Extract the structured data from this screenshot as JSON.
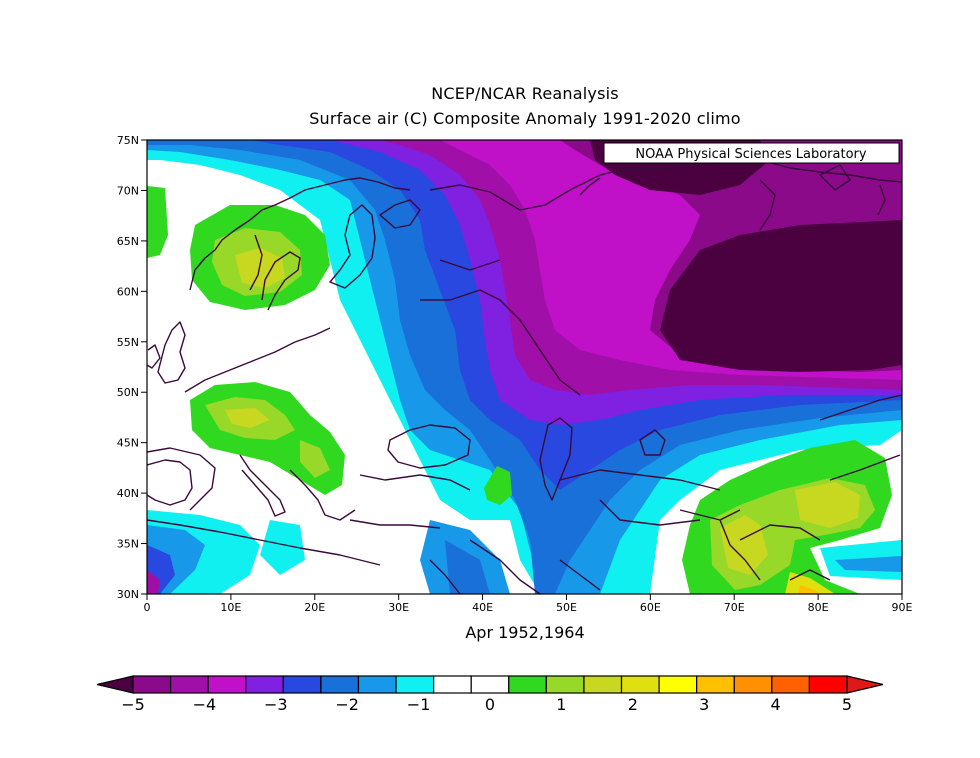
{
  "header": {
    "title": "NCEP/NCAR Reanalysis",
    "subtitle": "Surface air (C) Composite Anomaly 1991-2020 climo"
  },
  "credit": "NOAA Physical Sciences Laboratory",
  "period_label": "Apr 1952,1964",
  "axes": {
    "lat_labels": [
      "75N",
      "70N",
      "65N",
      "60N",
      "55N",
      "50N",
      "45N",
      "40N",
      "35N",
      "30N"
    ],
    "lon_labels": [
      "0",
      "10E",
      "20E",
      "30E",
      "40E",
      "50E",
      "60E",
      "70E",
      "80E",
      "90E"
    ]
  },
  "map": {
    "region": "Europe / Western Asia",
    "lon_range": [
      0,
      90
    ],
    "lat_range": [
      30,
      75
    ],
    "variable": "Surface air temperature anomaly",
    "units": "C"
  },
  "colorbar": {
    "tick_labels": [
      "-5",
      "-4",
      "-3",
      "-2",
      "-1",
      "0",
      "1",
      "2",
      "3",
      "4",
      "5"
    ],
    "colors": [
      "#4b0040",
      "#8a0a8a",
      "#a010a8",
      "#c010c8",
      "#8020e0",
      "#2848e0",
      "#1870d8",
      "#1898e8",
      "#10f0f0",
      "#ffffff",
      "#ffffff",
      "#30d820",
      "#98d828",
      "#c8d820",
      "#e0e010",
      "#ffff00",
      "#ffc000",
      "#ff9000",
      "#ff6000",
      "#ff0000",
      "#e01818"
    ]
  }
}
